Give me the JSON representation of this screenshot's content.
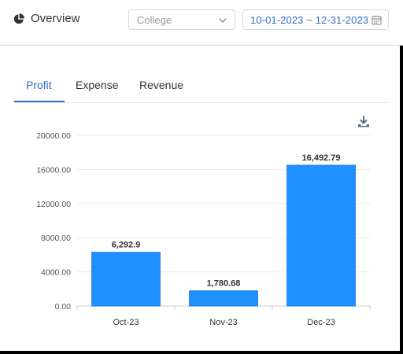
{
  "header": {
    "title": "Overview",
    "icon": "pie-chart-icon",
    "select_value": "College",
    "date_range": "10-01-2023 ~ 12-31-2023"
  },
  "tabs": [
    {
      "label": "Profit",
      "active": true
    },
    {
      "label": "Expense",
      "active": false
    },
    {
      "label": "Revenue",
      "active": false
    }
  ],
  "colors": {
    "accent": "#2f6ec8",
    "bar": "#1e90ff",
    "bar_stroke": "#1a7fe6"
  },
  "chart_data": {
    "type": "bar",
    "categories": [
      "Oct-23",
      "Nov-23",
      "Dec-23"
    ],
    "values": [
      6292.9,
      1780.68,
      16492.79
    ],
    "value_labels": [
      "6,292.9",
      "1,780.68",
      "16,492.79"
    ],
    "ylim": [
      0,
      20000
    ],
    "yticks": [
      0,
      4000,
      8000,
      12000,
      16000,
      20000
    ],
    "ytick_labels": [
      "0.00",
      "4000.00",
      "8000.00",
      "12000.00",
      "16000.00",
      "20000.00"
    ],
    "grid": true,
    "title": "",
    "xlabel": "",
    "ylabel": ""
  }
}
